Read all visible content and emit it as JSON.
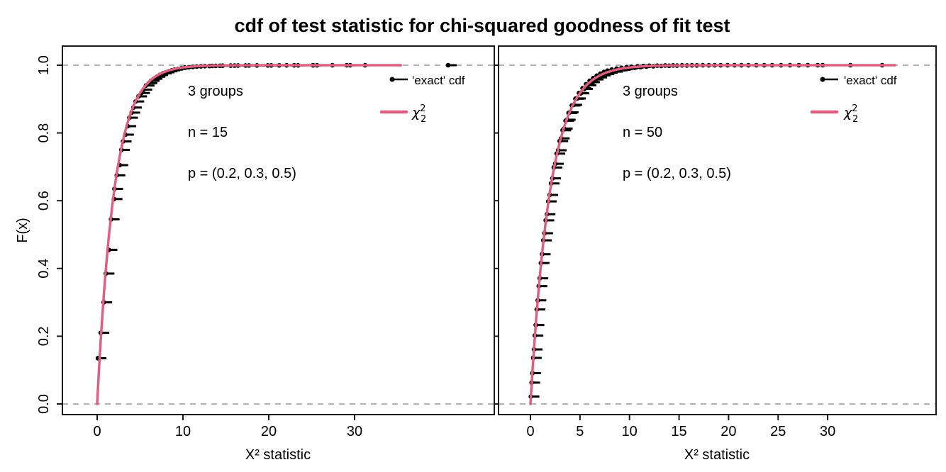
{
  "title": "cdf of test statistic for chi-squared goodness of fit test",
  "x_axis_label": "X² statistic",
  "y_axis": {
    "label": "F(x)",
    "tick_values": [
      0,
      0.2,
      0.4,
      0.6,
      0.8,
      1.0
    ],
    "tick_labels": [
      "0.0",
      "0.2",
      "0.4",
      "0.6",
      "0.8",
      "1.0"
    ],
    "range": [
      0,
      1
    ]
  },
  "legend": {
    "point_label": "'exact' cdf",
    "curve_label_chi": "χ",
    "curve_label_sup": "2",
    "curve_label_sub": "2"
  },
  "colors": {
    "curve": "#DD6080",
    "points": "#000000",
    "dashed_guide": "#999999",
    "axis": "#1a1a1a",
    "background": "#ffffff"
  },
  "chart_data": [
    {
      "type": "scatter",
      "panel": "left",
      "annotations": [
        "3 groups",
        "n = 15",
        "p = (0.2, 0.3, 0.5)"
      ],
      "x_tick_values": [
        0,
        10,
        20,
        30
      ],
      "x_tick_labels": [
        "0",
        "10",
        "20",
        "30"
      ],
      "xlabel": "X² statistic",
      "ylabel": "F(x)",
      "ylim": [
        0,
        1
      ],
      "guide_lines_y": [
        0,
        1
      ],
      "curve": {
        "name": "chi-squared cdf",
        "df": 2,
        "x_start": 0,
        "x_end": 35.4
      },
      "points": {
        "x": [
          0.09,
          0.42,
          0.76,
          1.02,
          1.36,
          1.62,
          1.96,
          2.02,
          2.29,
          2.62,
          2.82,
          3.02,
          3.29,
          3.56,
          3.76,
          4.02,
          4.22,
          4.49,
          4.82,
          5.16,
          5.42,
          5.69,
          6.02,
          6.29,
          6.62,
          6.96,
          7.29,
          7.69,
          8.02,
          8.36,
          8.69,
          9.02,
          9.42,
          9.82,
          10.22,
          10.69,
          11.16,
          11.62,
          12.09,
          12.56,
          13.09,
          13.42,
          13.82,
          14.29,
          14.62,
          15.56,
          16.02,
          16.42,
          17.29,
          17.69,
          18.62,
          19.89,
          20.29,
          21.22,
          22.09,
          22.96,
          23.42,
          25.16,
          25.62,
          27.42,
          29.09,
          29.49,
          31.22,
          40.9
        ],
        "y": [
          0.135,
          0.21,
          0.3,
          0.385,
          0.455,
          0.545,
          0.605,
          0.635,
          0.675,
          0.705,
          0.75,
          0.775,
          0.795,
          0.82,
          0.845,
          0.86,
          0.875,
          0.893,
          0.908,
          0.918,
          0.928,
          0.94,
          0.947,
          0.954,
          0.96,
          0.966,
          0.971,
          0.976,
          0.979,
          0.982,
          0.985,
          0.987,
          0.989,
          0.991,
          0.993,
          0.994,
          0.995,
          0.996,
          0.9966,
          0.9971,
          0.9976,
          0.9979,
          0.9981,
          0.9984,
          0.9986,
          0.9988,
          0.9989,
          0.999,
          0.9991,
          0.9992,
          0.9993,
          0.9994,
          0.99945,
          0.9995,
          0.99955,
          0.9996,
          0.99965,
          0.9997,
          0.99975,
          0.9998,
          0.99985,
          0.9999,
          0.99995,
          1.0
        ]
      }
    },
    {
      "type": "scatter",
      "panel": "right",
      "annotations": [
        "3 groups",
        "n = 50",
        "p = (0.2, 0.3, 0.5)"
      ],
      "x_tick_values": [
        0,
        5,
        10,
        15,
        20,
        25,
        30
      ],
      "x_tick_labels": [
        "0",
        "5",
        "10",
        "15",
        "20",
        "25",
        "30"
      ],
      "xlabel": "X² statistic",
      "ylabel": "F(x)",
      "ylim": [
        0,
        1
      ],
      "guide_lines_y": [
        0,
        1
      ],
      "curve": {
        "name": "chi-squared cdf",
        "df": 2,
        "x_start": 0,
        "x_end": 36.9
      },
      "points": {
        "x": [
          0.04,
          0.12,
          0.2,
          0.28,
          0.36,
          0.44,
          0.54,
          0.64,
          0.74,
          0.84,
          0.94,
          1.06,
          1.18,
          1.3,
          1.42,
          1.54,
          1.66,
          1.8,
          1.94,
          2.08,
          2.22,
          2.36,
          2.5,
          2.65,
          2.8,
          2.95,
          3.1,
          3.25,
          3.4,
          3.55,
          3.7,
          3.85,
          4.0,
          4.18,
          4.36,
          4.54,
          4.72,
          4.9,
          5.08,
          5.26,
          5.44,
          5.62,
          5.8,
          5.98,
          6.16,
          6.34,
          6.52,
          6.7,
          6.88,
          7.06,
          7.24,
          7.42,
          7.6,
          7.78,
          7.96,
          8.2,
          8.45,
          8.7,
          8.95,
          9.2,
          9.45,
          9.7,
          9.95,
          10.2,
          10.5,
          10.8,
          11.1,
          11.4,
          11.7,
          12.0,
          12.4,
          12.8,
          13.2,
          13.6,
          14.0,
          14.4,
          14.8,
          15.3,
          15.8,
          16.3,
          16.8,
          17.4,
          18.0,
          18.6,
          19.2,
          19.9,
          20.6,
          21.3,
          22.0,
          22.8,
          23.6,
          24.4,
          25.3,
          26.2,
          27.1,
          28.0,
          29.0,
          29.5,
          32.3,
          35.5
        ],
        "y": [
          0.022,
          0.063,
          0.091,
          0.136,
          0.161,
          0.202,
          0.233,
          0.279,
          0.306,
          0.348,
          0.371,
          0.416,
          0.442,
          0.483,
          0.504,
          0.542,
          0.56,
          0.598,
          0.617,
          0.651,
          0.666,
          0.698,
          0.709,
          0.739,
          0.749,
          0.776,
          0.784,
          0.808,
          0.813,
          0.836,
          0.839,
          0.859,
          0.861,
          0.881,
          0.883,
          0.901,
          0.902,
          0.918,
          0.917,
          0.932,
          0.93,
          0.944,
          0.941,
          0.954,
          0.95,
          0.962,
          0.958,
          0.969,
          0.964,
          0.975,
          0.97,
          0.98,
          0.974,
          0.984,
          0.978,
          0.987,
          0.981,
          0.99,
          0.985,
          0.992,
          0.988,
          0.994,
          0.99,
          0.9952,
          0.9925,
          0.9965,
          0.9945,
          0.9975,
          0.9958,
          0.9982,
          0.9968,
          0.9987,
          0.9977,
          0.9991,
          0.9983,
          0.9994,
          0.9988,
          0.99955,
          0.9992,
          0.9997,
          0.99945,
          0.9998,
          0.9996,
          0.99987,
          0.99972,
          0.99992,
          0.99981,
          0.99995,
          0.99987,
          0.99997,
          0.99991,
          0.99998,
          0.99994,
          0.99999,
          0.99996,
          1.0,
          0.99998,
          1.0,
          1.0,
          1.0
        ]
      }
    }
  ]
}
